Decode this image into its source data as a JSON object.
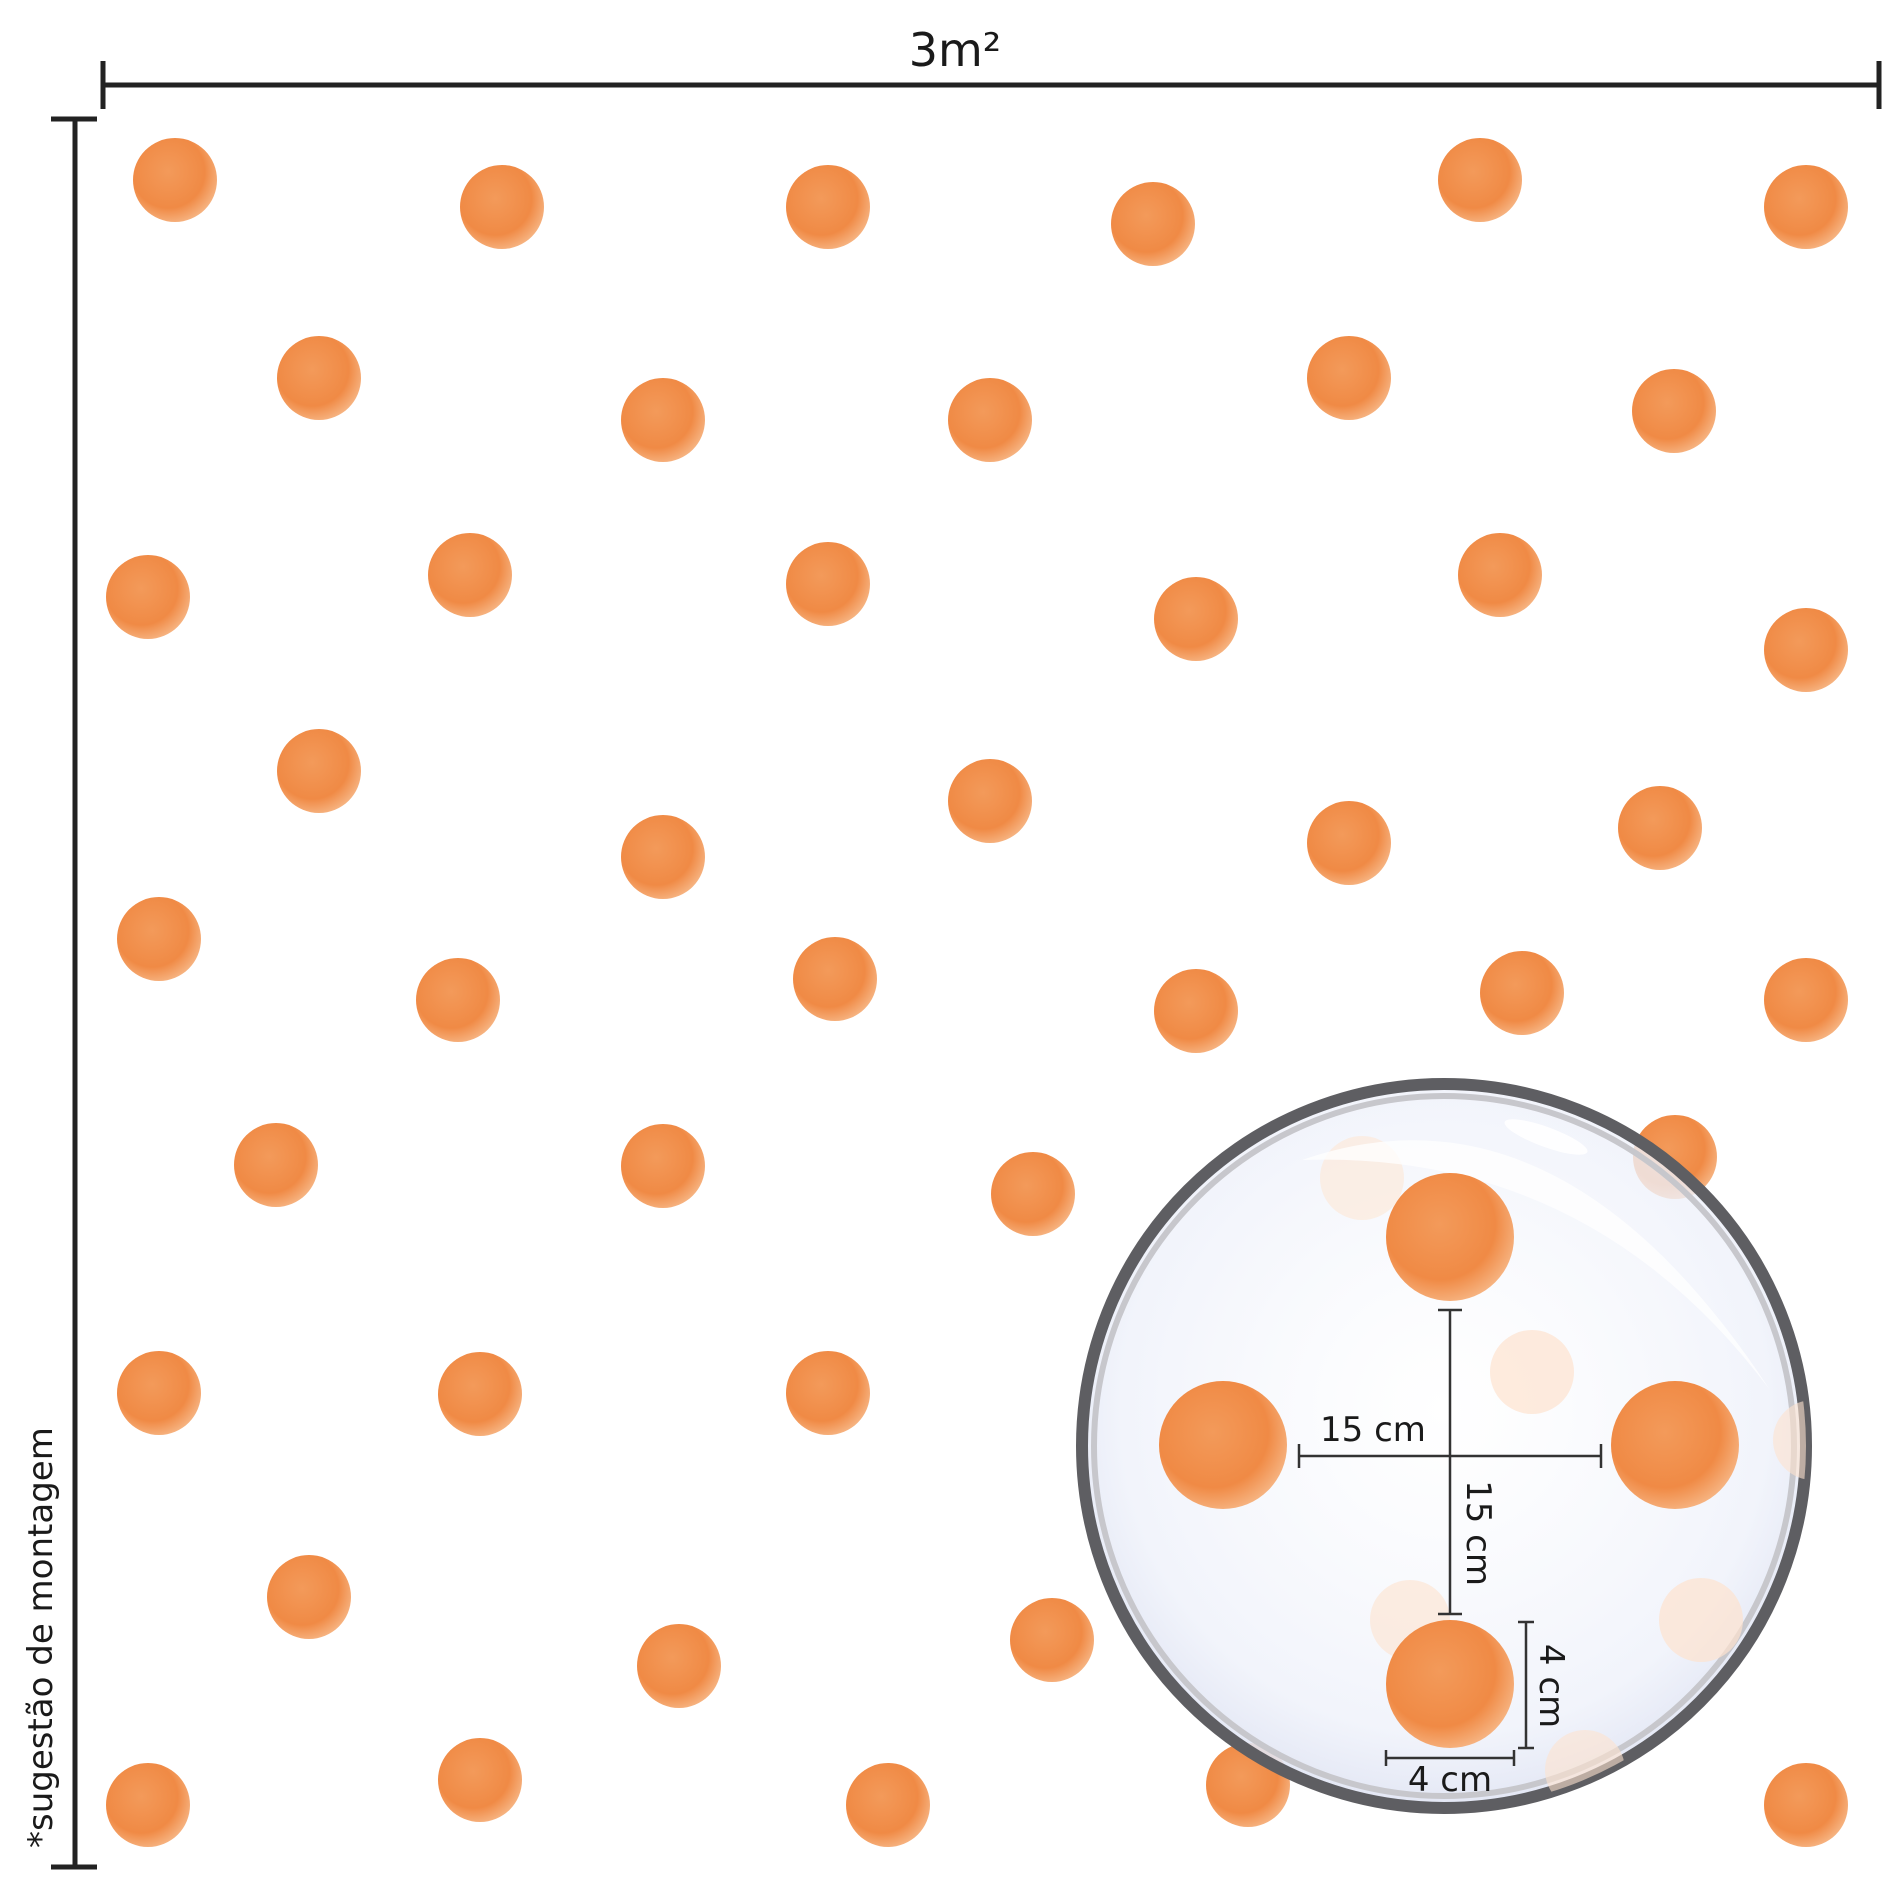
{
  "width_label": "3m²",
  "side_note": "*sugestão de montagem",
  "zoom": {
    "spacing_horizontal": "15 cm",
    "spacing_vertical": "15 cm",
    "dot_height": "4 cm",
    "dot_width": "4 cm"
  },
  "colors": {
    "dot": "#f0944f",
    "dot_edge": "#fbd3b2",
    "line": "#222222",
    "lens_rim": "#5e5e62",
    "lens_fill": "#f2f4fb"
  }
}
